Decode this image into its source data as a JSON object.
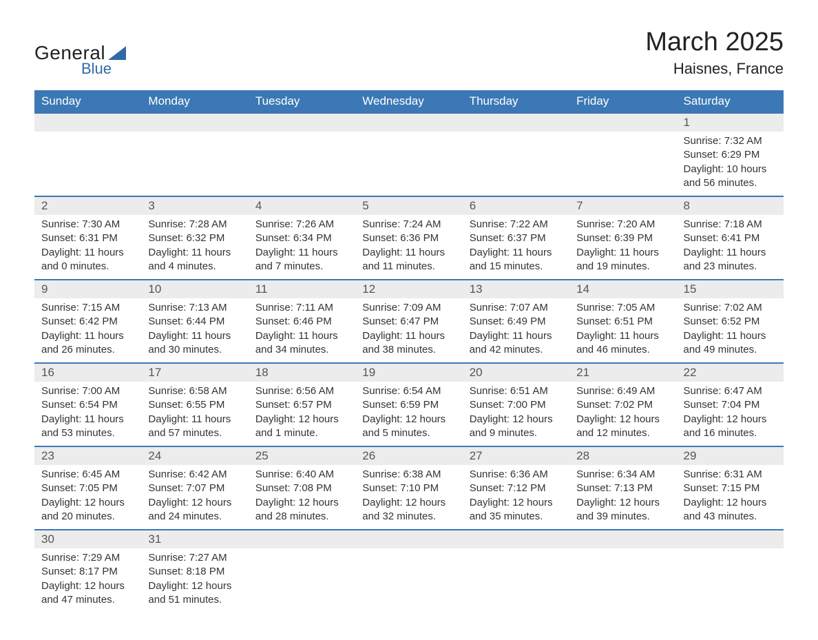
{
  "logo": {
    "text_main": "General",
    "text_sub": "Blue",
    "triangle_color": "#2f6aa8"
  },
  "title": "March 2025",
  "location": "Haisnes, France",
  "colors": {
    "header_bg": "#3b78b5",
    "header_text": "#ffffff",
    "daynum_bg": "#ececec",
    "daynum_text": "#555555",
    "body_text": "#333333",
    "row_border": "#3b78b5",
    "page_bg": "#ffffff"
  },
  "day_headers": [
    "Sunday",
    "Monday",
    "Tuesday",
    "Wednesday",
    "Thursday",
    "Friday",
    "Saturday"
  ],
  "weeks": [
    [
      null,
      null,
      null,
      null,
      null,
      null,
      {
        "n": "1",
        "sunrise": "Sunrise: 7:32 AM",
        "sunset": "Sunset: 6:29 PM",
        "daylight": "Daylight: 10 hours and 56 minutes."
      }
    ],
    [
      {
        "n": "2",
        "sunrise": "Sunrise: 7:30 AM",
        "sunset": "Sunset: 6:31 PM",
        "daylight": "Daylight: 11 hours and 0 minutes."
      },
      {
        "n": "3",
        "sunrise": "Sunrise: 7:28 AM",
        "sunset": "Sunset: 6:32 PM",
        "daylight": "Daylight: 11 hours and 4 minutes."
      },
      {
        "n": "4",
        "sunrise": "Sunrise: 7:26 AM",
        "sunset": "Sunset: 6:34 PM",
        "daylight": "Daylight: 11 hours and 7 minutes."
      },
      {
        "n": "5",
        "sunrise": "Sunrise: 7:24 AM",
        "sunset": "Sunset: 6:36 PM",
        "daylight": "Daylight: 11 hours and 11 minutes."
      },
      {
        "n": "6",
        "sunrise": "Sunrise: 7:22 AM",
        "sunset": "Sunset: 6:37 PM",
        "daylight": "Daylight: 11 hours and 15 minutes."
      },
      {
        "n": "7",
        "sunrise": "Sunrise: 7:20 AM",
        "sunset": "Sunset: 6:39 PM",
        "daylight": "Daylight: 11 hours and 19 minutes."
      },
      {
        "n": "8",
        "sunrise": "Sunrise: 7:18 AM",
        "sunset": "Sunset: 6:41 PM",
        "daylight": "Daylight: 11 hours and 23 minutes."
      }
    ],
    [
      {
        "n": "9",
        "sunrise": "Sunrise: 7:15 AM",
        "sunset": "Sunset: 6:42 PM",
        "daylight": "Daylight: 11 hours and 26 minutes."
      },
      {
        "n": "10",
        "sunrise": "Sunrise: 7:13 AM",
        "sunset": "Sunset: 6:44 PM",
        "daylight": "Daylight: 11 hours and 30 minutes."
      },
      {
        "n": "11",
        "sunrise": "Sunrise: 7:11 AM",
        "sunset": "Sunset: 6:46 PM",
        "daylight": "Daylight: 11 hours and 34 minutes."
      },
      {
        "n": "12",
        "sunrise": "Sunrise: 7:09 AM",
        "sunset": "Sunset: 6:47 PM",
        "daylight": "Daylight: 11 hours and 38 minutes."
      },
      {
        "n": "13",
        "sunrise": "Sunrise: 7:07 AM",
        "sunset": "Sunset: 6:49 PM",
        "daylight": "Daylight: 11 hours and 42 minutes."
      },
      {
        "n": "14",
        "sunrise": "Sunrise: 7:05 AM",
        "sunset": "Sunset: 6:51 PM",
        "daylight": "Daylight: 11 hours and 46 minutes."
      },
      {
        "n": "15",
        "sunrise": "Sunrise: 7:02 AM",
        "sunset": "Sunset: 6:52 PM",
        "daylight": "Daylight: 11 hours and 49 minutes."
      }
    ],
    [
      {
        "n": "16",
        "sunrise": "Sunrise: 7:00 AM",
        "sunset": "Sunset: 6:54 PM",
        "daylight": "Daylight: 11 hours and 53 minutes."
      },
      {
        "n": "17",
        "sunrise": "Sunrise: 6:58 AM",
        "sunset": "Sunset: 6:55 PM",
        "daylight": "Daylight: 11 hours and 57 minutes."
      },
      {
        "n": "18",
        "sunrise": "Sunrise: 6:56 AM",
        "sunset": "Sunset: 6:57 PM",
        "daylight": "Daylight: 12 hours and 1 minute."
      },
      {
        "n": "19",
        "sunrise": "Sunrise: 6:54 AM",
        "sunset": "Sunset: 6:59 PM",
        "daylight": "Daylight: 12 hours and 5 minutes."
      },
      {
        "n": "20",
        "sunrise": "Sunrise: 6:51 AM",
        "sunset": "Sunset: 7:00 PM",
        "daylight": "Daylight: 12 hours and 9 minutes."
      },
      {
        "n": "21",
        "sunrise": "Sunrise: 6:49 AM",
        "sunset": "Sunset: 7:02 PM",
        "daylight": "Daylight: 12 hours and 12 minutes."
      },
      {
        "n": "22",
        "sunrise": "Sunrise: 6:47 AM",
        "sunset": "Sunset: 7:04 PM",
        "daylight": "Daylight: 12 hours and 16 minutes."
      }
    ],
    [
      {
        "n": "23",
        "sunrise": "Sunrise: 6:45 AM",
        "sunset": "Sunset: 7:05 PM",
        "daylight": "Daylight: 12 hours and 20 minutes."
      },
      {
        "n": "24",
        "sunrise": "Sunrise: 6:42 AM",
        "sunset": "Sunset: 7:07 PM",
        "daylight": "Daylight: 12 hours and 24 minutes."
      },
      {
        "n": "25",
        "sunrise": "Sunrise: 6:40 AM",
        "sunset": "Sunset: 7:08 PM",
        "daylight": "Daylight: 12 hours and 28 minutes."
      },
      {
        "n": "26",
        "sunrise": "Sunrise: 6:38 AM",
        "sunset": "Sunset: 7:10 PM",
        "daylight": "Daylight: 12 hours and 32 minutes."
      },
      {
        "n": "27",
        "sunrise": "Sunrise: 6:36 AM",
        "sunset": "Sunset: 7:12 PM",
        "daylight": "Daylight: 12 hours and 35 minutes."
      },
      {
        "n": "28",
        "sunrise": "Sunrise: 6:34 AM",
        "sunset": "Sunset: 7:13 PM",
        "daylight": "Daylight: 12 hours and 39 minutes."
      },
      {
        "n": "29",
        "sunrise": "Sunrise: 6:31 AM",
        "sunset": "Sunset: 7:15 PM",
        "daylight": "Daylight: 12 hours and 43 minutes."
      }
    ],
    [
      {
        "n": "30",
        "sunrise": "Sunrise: 7:29 AM",
        "sunset": "Sunset: 8:17 PM",
        "daylight": "Daylight: 12 hours and 47 minutes."
      },
      {
        "n": "31",
        "sunrise": "Sunrise: 7:27 AM",
        "sunset": "Sunset: 8:18 PM",
        "daylight": "Daylight: 12 hours and 51 minutes."
      },
      null,
      null,
      null,
      null,
      null
    ]
  ]
}
